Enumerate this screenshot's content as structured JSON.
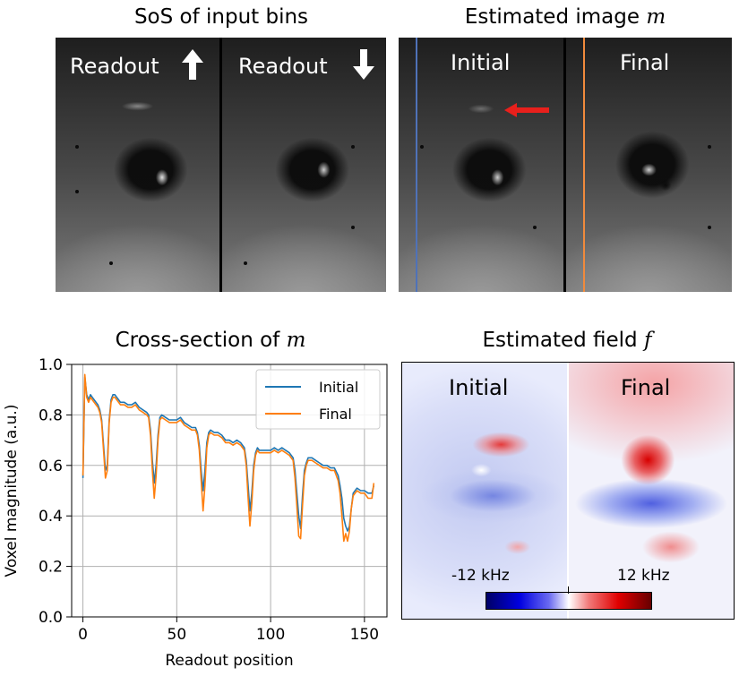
{
  "top_left": {
    "title": "SoS of input bins",
    "labels": [
      "Readout",
      "Readout"
    ],
    "arrow_icons": [
      "arrow-up-icon",
      "arrow-down-icon"
    ]
  },
  "top_right": {
    "title_prefix": "Estimated image",
    "title_var": "m",
    "labels": [
      "Initial",
      "Final"
    ],
    "line_colors": {
      "initial": "#4f72b8",
      "final": "#f08a3c"
    },
    "pointer_color": "#e8201c"
  },
  "bottom_right": {
    "title_prefix": "Estimated field",
    "title_var": "f",
    "labels": [
      "Initial",
      "Final"
    ],
    "colorbar": {
      "min_label": "-12 kHz",
      "max_label": "12 kHz"
    }
  },
  "chart_data": {
    "type": "line",
    "title_prefix": "Cross-section of",
    "title_var": "m",
    "xlabel": "Readout position",
    "ylabel": "Voxel magnitude (a.u.)",
    "xlim": [
      -6,
      162
    ],
    "ylim": [
      0.0,
      1.0
    ],
    "xticks": [
      0,
      50,
      100,
      150
    ],
    "yticks": [
      0.0,
      0.2,
      0.4,
      0.6,
      0.8,
      1.0
    ],
    "xtick_labels": [
      "0",
      "50",
      "100",
      "150"
    ],
    "ytick_labels": [
      "0.0",
      "0.2",
      "0.4",
      "0.6",
      "0.8",
      "1.0"
    ],
    "grid": true,
    "legend_position": "top-right",
    "series": [
      {
        "name": "Initial",
        "color": "#1f77b4",
        "x": [
          0,
          1,
          2,
          3,
          4,
          5,
          6,
          7,
          8,
          9,
          10,
          11,
          12,
          13,
          14,
          15,
          16,
          17,
          18,
          19,
          20,
          22,
          24,
          26,
          28,
          30,
          32,
          34,
          35,
          36,
          37,
          38,
          39,
          40,
          41,
          42,
          44,
          46,
          48,
          50,
          52,
          54,
          56,
          58,
          60,
          61,
          62,
          63,
          64,
          65,
          66,
          67,
          68,
          70,
          72,
          74,
          76,
          78,
          80,
          82,
          84,
          86,
          87,
          88,
          89,
          90,
          91,
          92,
          93,
          94,
          96,
          98,
          100,
          102,
          104,
          106,
          108,
          110,
          112,
          113,
          114,
          115,
          116,
          117,
          118,
          119,
          120,
          122,
          124,
          126,
          128,
          130,
          132,
          134,
          136,
          137,
          138,
          139,
          140,
          141,
          142,
          143,
          144,
          146,
          148,
          150,
          152,
          154,
          155
        ],
        "y": [
          0.55,
          0.95,
          0.88,
          0.86,
          0.88,
          0.87,
          0.86,
          0.85,
          0.84,
          0.82,
          0.78,
          0.68,
          0.58,
          0.6,
          0.78,
          0.86,
          0.88,
          0.88,
          0.87,
          0.86,
          0.85,
          0.85,
          0.84,
          0.84,
          0.85,
          0.83,
          0.82,
          0.81,
          0.8,
          0.74,
          0.62,
          0.53,
          0.6,
          0.72,
          0.79,
          0.8,
          0.79,
          0.78,
          0.78,
          0.78,
          0.79,
          0.77,
          0.76,
          0.75,
          0.75,
          0.73,
          0.68,
          0.58,
          0.5,
          0.58,
          0.69,
          0.73,
          0.74,
          0.73,
          0.73,
          0.72,
          0.7,
          0.7,
          0.69,
          0.7,
          0.69,
          0.67,
          0.62,
          0.52,
          0.42,
          0.49,
          0.6,
          0.65,
          0.67,
          0.66,
          0.66,
          0.66,
          0.66,
          0.67,
          0.66,
          0.67,
          0.66,
          0.65,
          0.63,
          0.58,
          0.49,
          0.4,
          0.35,
          0.48,
          0.58,
          0.61,
          0.63,
          0.63,
          0.62,
          0.61,
          0.6,
          0.6,
          0.59,
          0.59,
          0.56,
          0.52,
          0.47,
          0.39,
          0.36,
          0.34,
          0.36,
          0.43,
          0.49,
          0.51,
          0.5,
          0.5,
          0.49,
          0.49,
          0.52
        ]
      },
      {
        "name": "Final",
        "color": "#ff7f0e",
        "x": [
          0,
          1,
          2,
          3,
          4,
          5,
          6,
          7,
          8,
          9,
          10,
          11,
          12,
          13,
          14,
          15,
          16,
          17,
          18,
          19,
          20,
          22,
          24,
          26,
          28,
          30,
          32,
          34,
          35,
          36,
          37,
          38,
          39,
          40,
          41,
          42,
          44,
          46,
          48,
          50,
          52,
          54,
          56,
          58,
          60,
          61,
          62,
          63,
          64,
          65,
          66,
          67,
          68,
          70,
          72,
          74,
          76,
          78,
          80,
          82,
          84,
          86,
          87,
          88,
          89,
          90,
          91,
          92,
          93,
          94,
          96,
          98,
          100,
          102,
          104,
          106,
          108,
          110,
          112,
          113,
          114,
          115,
          116,
          117,
          118,
          119,
          120,
          122,
          124,
          126,
          128,
          130,
          132,
          134,
          136,
          137,
          138,
          139,
          140,
          141,
          142,
          143,
          144,
          146,
          148,
          150,
          152,
          154,
          155
        ],
        "y": [
          0.56,
          0.96,
          0.87,
          0.85,
          0.87,
          0.86,
          0.85,
          0.84,
          0.83,
          0.81,
          0.77,
          0.66,
          0.55,
          0.58,
          0.77,
          0.85,
          0.87,
          0.87,
          0.86,
          0.85,
          0.84,
          0.84,
          0.83,
          0.83,
          0.84,
          0.82,
          0.81,
          0.8,
          0.79,
          0.72,
          0.58,
          0.47,
          0.56,
          0.7,
          0.78,
          0.79,
          0.78,
          0.77,
          0.77,
          0.77,
          0.78,
          0.76,
          0.75,
          0.74,
          0.74,
          0.72,
          0.66,
          0.54,
          0.42,
          0.52,
          0.67,
          0.72,
          0.73,
          0.72,
          0.72,
          0.71,
          0.69,
          0.69,
          0.68,
          0.69,
          0.68,
          0.66,
          0.6,
          0.47,
          0.36,
          0.45,
          0.58,
          0.64,
          0.66,
          0.65,
          0.65,
          0.65,
          0.65,
          0.66,
          0.65,
          0.66,
          0.65,
          0.64,
          0.62,
          0.55,
          0.44,
          0.32,
          0.31,
          0.44,
          0.56,
          0.6,
          0.62,
          0.62,
          0.61,
          0.6,
          0.59,
          0.59,
          0.58,
          0.58,
          0.54,
          0.49,
          0.4,
          0.3,
          0.33,
          0.3,
          0.34,
          0.43,
          0.48,
          0.5,
          0.49,
          0.49,
          0.47,
          0.47,
          0.53
        ]
      }
    ]
  }
}
